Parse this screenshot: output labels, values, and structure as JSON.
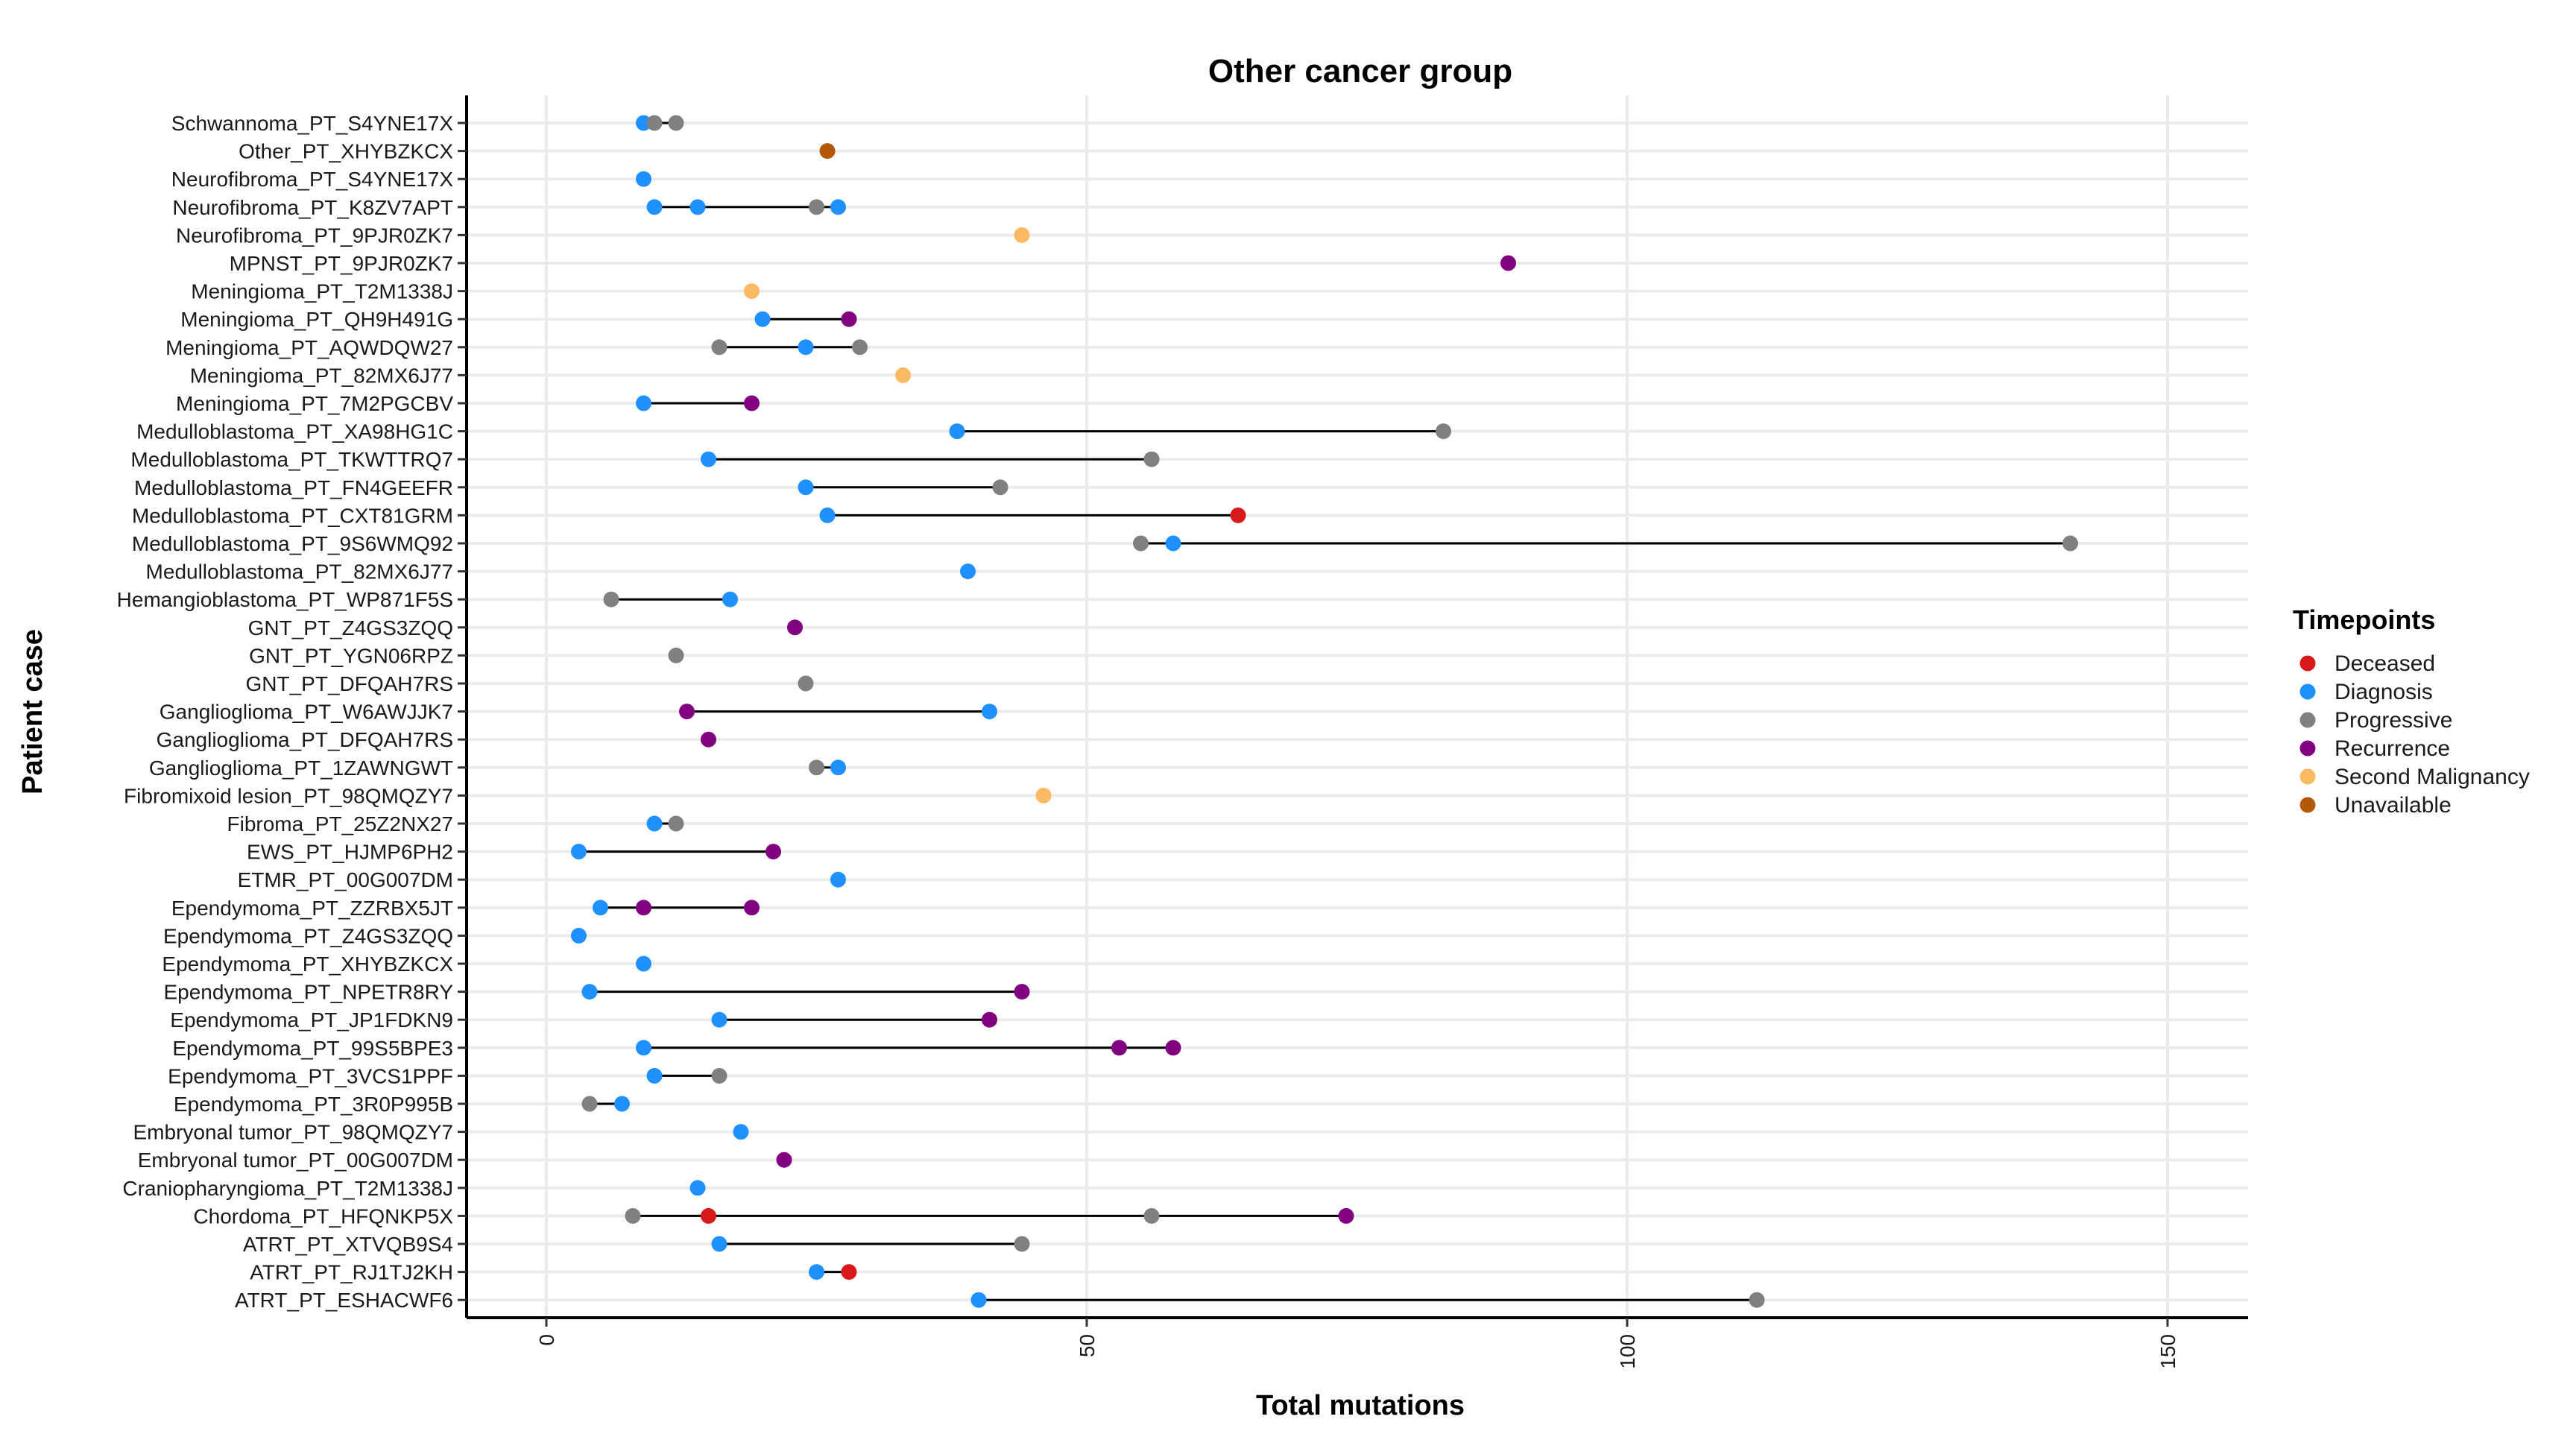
{
  "chart_data": {
    "type": "dumbbell",
    "title": "Other cancer group",
    "xlabel": "Total mutations",
    "ylabel": "Patient case",
    "xlim": [
      -7,
      158
    ],
    "xticks": [
      0,
      50,
      100,
      150
    ],
    "grid": true,
    "legend": {
      "title": "Timepoints",
      "placement": "right",
      "entries": [
        {
          "label": "Deceased",
          "color": "#d7191c"
        },
        {
          "label": "Diagnosis",
          "color": "#1e90ff"
        },
        {
          "label": "Progressive",
          "color": "#808080"
        },
        {
          "label": "Recurrence",
          "color": "#800080"
        },
        {
          "label": "Second Malignancy",
          "color": "#fdb863"
        },
        {
          "label": "Unavailable",
          "color": "#b35806"
        }
      ]
    },
    "cases": [
      {
        "label": "Schwannoma_PT_S4YNE17X",
        "points": [
          {
            "tp": "Diagnosis",
            "x": 9
          },
          {
            "tp": "Progressive",
            "x": 10
          },
          {
            "tp": "Progressive",
            "x": 12
          }
        ]
      },
      {
        "label": "Other_PT_XHYBZKCX",
        "points": [
          {
            "tp": "Unavailable",
            "x": 26
          }
        ]
      },
      {
        "label": "Neurofibroma_PT_S4YNE17X",
        "points": [
          {
            "tp": "Diagnosis",
            "x": 9
          }
        ]
      },
      {
        "label": "Neurofibroma_PT_K8ZV7APT",
        "points": [
          {
            "tp": "Diagnosis",
            "x": 10
          },
          {
            "tp": "Diagnosis",
            "x": 14
          },
          {
            "tp": "Progressive",
            "x": 25
          },
          {
            "tp": "Diagnosis",
            "x": 27
          }
        ]
      },
      {
        "label": "Neurofibroma_PT_9PJR0ZK7",
        "points": [
          {
            "tp": "Second Malignancy",
            "x": 44
          }
        ]
      },
      {
        "label": "MPNST_PT_9PJR0ZK7",
        "points": [
          {
            "tp": "Recurrence",
            "x": 89
          }
        ]
      },
      {
        "label": "Meningioma_PT_T2M1338J",
        "points": [
          {
            "tp": "Second Malignancy",
            "x": 19
          }
        ]
      },
      {
        "label": "Meningioma_PT_QH9H491G",
        "points": [
          {
            "tp": "Diagnosis",
            "x": 20
          },
          {
            "tp": "Recurrence",
            "x": 28
          }
        ]
      },
      {
        "label": "Meningioma_PT_AQWDQW27",
        "points": [
          {
            "tp": "Progressive",
            "x": 16
          },
          {
            "tp": "Diagnosis",
            "x": 24
          },
          {
            "tp": "Progressive",
            "x": 29
          }
        ]
      },
      {
        "label": "Meningioma_PT_82MX6J77",
        "points": [
          {
            "tp": "Second Malignancy",
            "x": 33
          }
        ]
      },
      {
        "label": "Meningioma_PT_7M2PGCBV",
        "points": [
          {
            "tp": "Diagnosis",
            "x": 9
          },
          {
            "tp": "Recurrence",
            "x": 19
          }
        ]
      },
      {
        "label": "Medulloblastoma_PT_XA98HG1C",
        "points": [
          {
            "tp": "Diagnosis",
            "x": 38
          },
          {
            "tp": "Progressive",
            "x": 83
          }
        ]
      },
      {
        "label": "Medulloblastoma_PT_TKWTTRQ7",
        "points": [
          {
            "tp": "Diagnosis",
            "x": 15
          },
          {
            "tp": "Progressive",
            "x": 56
          }
        ]
      },
      {
        "label": "Medulloblastoma_PT_FN4GEEFR",
        "points": [
          {
            "tp": "Diagnosis",
            "x": 24
          },
          {
            "tp": "Progressive",
            "x": 42
          }
        ]
      },
      {
        "label": "Medulloblastoma_PT_CXT81GRM",
        "points": [
          {
            "tp": "Diagnosis",
            "x": 26
          },
          {
            "tp": "Deceased",
            "x": 64
          }
        ]
      },
      {
        "label": "Medulloblastoma_PT_9S6WMQ92",
        "points": [
          {
            "tp": "Progressive",
            "x": 55
          },
          {
            "tp": "Diagnosis",
            "x": 58
          },
          {
            "tp": "Progressive",
            "x": 141
          }
        ]
      },
      {
        "label": "Medulloblastoma_PT_82MX6J77",
        "points": [
          {
            "tp": "Diagnosis",
            "x": 39
          }
        ]
      },
      {
        "label": "Hemangioblastoma_PT_WP871F5S",
        "points": [
          {
            "tp": "Progressive",
            "x": 6
          },
          {
            "tp": "Diagnosis",
            "x": 17
          }
        ]
      },
      {
        "label": "GNT_PT_Z4GS3ZQQ",
        "points": [
          {
            "tp": "Recurrence",
            "x": 23
          }
        ]
      },
      {
        "label": "GNT_PT_YGN06RPZ",
        "points": [
          {
            "tp": "Progressive",
            "x": 12
          }
        ]
      },
      {
        "label": "GNT_PT_DFQAH7RS",
        "points": [
          {
            "tp": "Progressive",
            "x": 24
          }
        ]
      },
      {
        "label": "Ganglioglioma_PT_W6AWJJK7",
        "points": [
          {
            "tp": "Recurrence",
            "x": 13
          },
          {
            "tp": "Diagnosis",
            "x": 41
          }
        ]
      },
      {
        "label": "Ganglioglioma_PT_DFQAH7RS",
        "points": [
          {
            "tp": "Recurrence",
            "x": 15
          }
        ]
      },
      {
        "label": "Ganglioglioma_PT_1ZAWNGWT",
        "points": [
          {
            "tp": "Progressive",
            "x": 25
          },
          {
            "tp": "Diagnosis",
            "x": 27
          }
        ]
      },
      {
        "label": "Fibromixoid lesion_PT_98QMQZY7",
        "points": [
          {
            "tp": "Second Malignancy",
            "x": 46
          }
        ]
      },
      {
        "label": "Fibroma_PT_25Z2NX27",
        "points": [
          {
            "tp": "Diagnosis",
            "x": 10
          },
          {
            "tp": "Progressive",
            "x": 12
          }
        ]
      },
      {
        "label": "EWS_PT_HJMP6PH2",
        "points": [
          {
            "tp": "Diagnosis",
            "x": 3
          },
          {
            "tp": "Recurrence",
            "x": 21
          }
        ]
      },
      {
        "label": "ETMR_PT_00G007DM",
        "points": [
          {
            "tp": "Diagnosis",
            "x": 27
          }
        ]
      },
      {
        "label": "Ependymoma_PT_ZZRBX5JT",
        "points": [
          {
            "tp": "Diagnosis",
            "x": 5
          },
          {
            "tp": "Recurrence",
            "x": 9
          },
          {
            "tp": "Recurrence",
            "x": 19
          }
        ]
      },
      {
        "label": "Ependymoma_PT_Z4GS3ZQQ",
        "points": [
          {
            "tp": "Diagnosis",
            "x": 3
          }
        ]
      },
      {
        "label": "Ependymoma_PT_XHYBZKCX",
        "points": [
          {
            "tp": "Diagnosis",
            "x": 9
          }
        ]
      },
      {
        "label": "Ependymoma_PT_NPETR8RY",
        "points": [
          {
            "tp": "Diagnosis",
            "x": 4
          },
          {
            "tp": "Recurrence",
            "x": 44
          }
        ]
      },
      {
        "label": "Ependymoma_PT_JP1FDKN9",
        "points": [
          {
            "tp": "Diagnosis",
            "x": 16
          },
          {
            "tp": "Recurrence",
            "x": 41
          }
        ]
      },
      {
        "label": "Ependymoma_PT_99S5BPE3",
        "points": [
          {
            "tp": "Diagnosis",
            "x": 9
          },
          {
            "tp": "Recurrence",
            "x": 53
          },
          {
            "tp": "Recurrence",
            "x": 58
          }
        ]
      },
      {
        "label": "Ependymoma_PT_3VCS1PPF",
        "points": [
          {
            "tp": "Diagnosis",
            "x": 10
          },
          {
            "tp": "Progressive",
            "x": 16
          }
        ]
      },
      {
        "label": "Ependymoma_PT_3R0P995B",
        "points": [
          {
            "tp": "Progressive",
            "x": 4
          },
          {
            "tp": "Diagnosis",
            "x": 7
          }
        ]
      },
      {
        "label": "Embryonal tumor_PT_98QMQZY7",
        "points": [
          {
            "tp": "Diagnosis",
            "x": 18
          }
        ]
      },
      {
        "label": "Embryonal tumor_PT_00G007DM",
        "points": [
          {
            "tp": "Recurrence",
            "x": 22
          }
        ]
      },
      {
        "label": "Craniopharyngioma_PT_T2M1338J",
        "points": [
          {
            "tp": "Diagnosis",
            "x": 14
          }
        ]
      },
      {
        "label": "Chordoma_PT_HFQNKP5X",
        "points": [
          {
            "tp": "Progressive",
            "x": 8
          },
          {
            "tp": "Deceased",
            "x": 15
          },
          {
            "tp": "Progressive",
            "x": 56
          },
          {
            "tp": "Recurrence",
            "x": 74
          }
        ]
      },
      {
        "label": "ATRT_PT_XTVQB9S4",
        "points": [
          {
            "tp": "Diagnosis",
            "x": 16
          },
          {
            "tp": "Progressive",
            "x": 44
          }
        ]
      },
      {
        "label": "ATRT_PT_RJ1TJ2KH",
        "points": [
          {
            "tp": "Diagnosis",
            "x": 25
          },
          {
            "tp": "Deceased",
            "x": 28
          }
        ]
      },
      {
        "label": "ATRT_PT_ESHACWF6",
        "points": [
          {
            "tp": "Diagnosis",
            "x": 40
          },
          {
            "tp": "Progressive",
            "x": 112
          }
        ]
      }
    ]
  }
}
